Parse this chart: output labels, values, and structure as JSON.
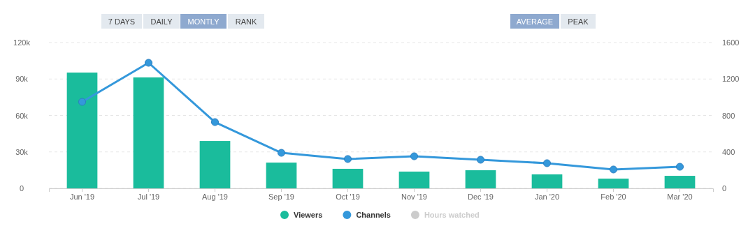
{
  "chart_data": {
    "type": "bar",
    "categories": [
      "Jun '19",
      "Jul '19",
      "Aug '19",
      "Sep '19",
      "Oct '19",
      "Nov '19",
      "Dec '19",
      "Jan '20",
      "Feb '20",
      "Mar '20"
    ],
    "series": [
      {
        "name": "Viewers",
        "color": "#1abc9c",
        "values": [
          95300,
          91300,
          39000,
          21200,
          16100,
          13800,
          14900,
          11500,
          8000,
          10300
        ]
      },
      {
        "name": "Channels",
        "type": "line",
        "axis": "y2",
        "color": "#3498db",
        "values": [
          949,
          1378,
          727,
          390,
          322,
          352,
          314,
          276,
          207,
          237
        ]
      },
      {
        "name": "Hours watched",
        "type": "line",
        "color": "#cccccc",
        "values": [
          null,
          null,
          null,
          null,
          null,
          null,
          null,
          null,
          null,
          null
        ]
      }
    ],
    "ylim": [
      0,
      120000
    ],
    "yticks": [
      0,
      {
        "value": 30000,
        "label": "30k"
      },
      {
        "value": 60000,
        "label": "60k"
      },
      {
        "value": 90000,
        "label": "90k"
      },
      {
        "value": 120000,
        "label": "120k"
      }
    ],
    "y2lim": [
      0,
      1600
    ],
    "y2ticks": [
      0,
      400,
      800,
      1200,
      1600
    ],
    "grid": "y",
    "legend": "bottom",
    "marker": "circle",
    "line_style": "solid",
    "annotations": [
      "7 DAYS",
      "DAILY",
      "MONTLY",
      "RANK",
      "AVERAGE",
      "PEAK"
    ]
  }
}
